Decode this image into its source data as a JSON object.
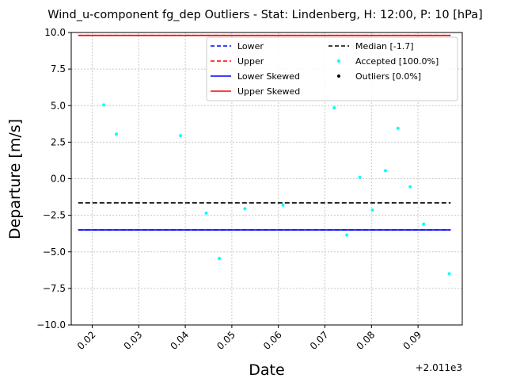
{
  "chart_data": {
    "type": "scatter",
    "title": "Wind_u-component fg_dep Outliers - Stat: Lindenberg, H: 12:00, P: 10 [hPa]",
    "xlabel": "Date",
    "ylabel": "Departure [m/s]",
    "x_offset_label": "+2.011e3",
    "xlim": [
      0.0155,
      0.0995
    ],
    "ylim": [
      -10,
      10
    ],
    "grid": true,
    "legend_location": "top-right",
    "x_ticks": [
      0.02,
      0.03,
      0.04,
      0.05,
      0.06,
      0.07,
      0.08,
      0.09
    ],
    "x_tick_labels": [
      "0.02",
      "0.03",
      "0.04",
      "0.05",
      "0.06",
      "0.07",
      "0.08",
      "0.09"
    ],
    "y_ticks": [
      -10,
      -7.5,
      -5,
      -2.5,
      0,
      2.5,
      5,
      7.5,
      10
    ],
    "y_tick_labels": [
      "−10.0",
      "−7.5",
      "−5.0",
      "−2.5",
      "0.0",
      "2.5",
      "5.0",
      "7.5",
      "10.0"
    ],
    "lines": [
      {
        "name": "Lower",
        "y": -3.5,
        "x_range": [
          0.017,
          0.097
        ],
        "color": "#0000ff",
        "dash": true
      },
      {
        "name": "Upper",
        "y": 9.8,
        "x_range": [
          0.017,
          0.097
        ],
        "color": "#ff0000",
        "dash": true
      },
      {
        "name": "Lower Skewed",
        "y": -3.5,
        "x_range": [
          0.017,
          0.097
        ],
        "color": "#0000ff",
        "dash": false
      },
      {
        "name": "Upper Skewed",
        "y": 9.8,
        "x_range": [
          0.017,
          0.097
        ],
        "color": "#ff0000",
        "dash": false
      },
      {
        "name": "Median [-1.7]",
        "y": -1.65,
        "x_range": [
          0.017,
          0.097
        ],
        "color": "#000000",
        "dash": true
      }
    ],
    "series": [
      {
        "name": "Accepted [100.0%]",
        "color": "#00ffff",
        "points": [
          {
            "x": 0.0225,
            "y": 5.05
          },
          {
            "x": 0.0252,
            "y": 3.05
          },
          {
            "x": 0.039,
            "y": 2.95
          },
          {
            "x": 0.0445,
            "y": -2.35
          },
          {
            "x": 0.0473,
            "y": -5.45
          },
          {
            "x": 0.0528,
            "y": -2.05
          },
          {
            "x": 0.061,
            "y": -1.8
          },
          {
            "x": 0.072,
            "y": 4.85
          },
          {
            "x": 0.0747,
            "y": -3.85
          },
          {
            "x": 0.0775,
            "y": 0.1
          },
          {
            "x": 0.0802,
            "y": -2.15
          },
          {
            "x": 0.083,
            "y": 0.55
          },
          {
            "x": 0.0857,
            "y": 3.45
          },
          {
            "x": 0.0883,
            "y": -0.55
          },
          {
            "x": 0.0912,
            "y": -3.1
          },
          {
            "x": 0.0967,
            "y": -6.5
          }
        ]
      },
      {
        "name": "Outliers [0.0%]",
        "color": "#000000",
        "points": []
      }
    ],
    "legend": [
      {
        "label": "Lower",
        "kind": "line",
        "color": "#0000ff",
        "dash": true
      },
      {
        "label": "Upper",
        "kind": "line",
        "color": "#ff0000",
        "dash": true
      },
      {
        "label": "Lower Skewed",
        "kind": "line",
        "color": "#0000ff",
        "dash": false
      },
      {
        "label": "Upper Skewed",
        "kind": "line",
        "color": "#ff0000",
        "dash": false
      },
      {
        "label": "Median [-1.7]",
        "kind": "line",
        "color": "#000000",
        "dash": true
      },
      {
        "label": "Accepted [100.0%]",
        "kind": "dot",
        "color": "#00ffff"
      },
      {
        "label": "Outliers [0.0%]",
        "kind": "dot",
        "color": "#000000"
      }
    ]
  }
}
